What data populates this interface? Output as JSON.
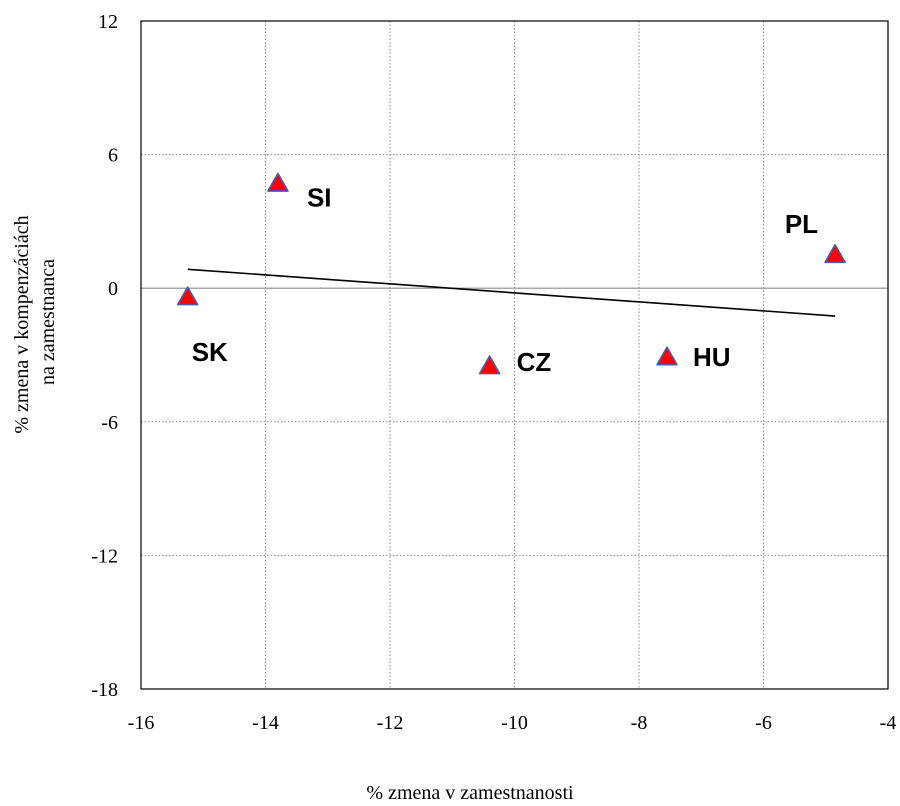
{
  "chart_data": {
    "type": "scatter",
    "title": "",
    "xlabel": "% zmena v zamestnanosti",
    "ylabel_lines": [
      "% zmena v kompenzáciách",
      "na zamestnanca"
    ],
    "xlim": [
      -16,
      -4
    ],
    "ylim": [
      -18,
      12
    ],
    "x_ticks": [
      -16,
      -14,
      -12,
      -10,
      -8,
      -6,
      -4
    ],
    "y_ticks": [
      -18,
      -12,
      -6,
      0,
      6,
      12
    ],
    "x_tick_labels": [
      "-16",
      "-14",
      "-12",
      "-10",
      "-8",
      "-6",
      "-4"
    ],
    "y_tick_labels": [
      "-18",
      "-12",
      "-6",
      "0",
      "6",
      "12"
    ],
    "grid": true,
    "points": [
      {
        "label": "SK",
        "x": -15.25,
        "y": -0.4
      },
      {
        "label": "SI",
        "x": -13.8,
        "y": 4.7
      },
      {
        "label": "CZ",
        "x": -10.4,
        "y": -3.5
      },
      {
        "label": "HU",
        "x": -7.55,
        "y": -3.1
      },
      {
        "label": "PL",
        "x": -4.85,
        "y": 1.5
      }
    ],
    "trendline": {
      "x": [
        -15.25,
        -4.85
      ],
      "y": [
        0.85,
        -1.25
      ]
    },
    "colors": {
      "marker_fill": "#ff0000",
      "marker_stroke": "#4a5aa8",
      "grid": "#8c8c8c",
      "trendline": "#000000"
    }
  }
}
